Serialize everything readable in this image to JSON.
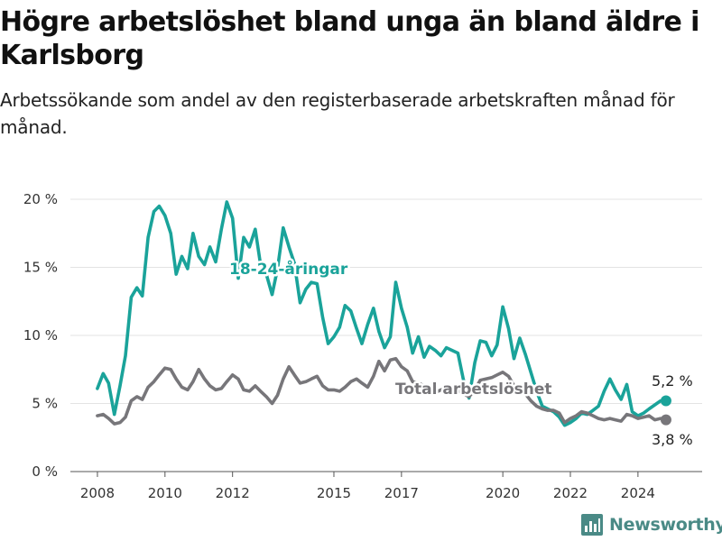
{
  "title": "Högre arbetslöshet bland unga än bland äldre i Karlsborg",
  "subtitle": "Arbetssökande som andel av den registerbaserade arbetskraften månad för månad.",
  "brand": {
    "name": "Newsworthy",
    "icon": "bar-chart-logo-icon",
    "color": "#4a8a86"
  },
  "chart_data": {
    "type": "line",
    "title": "Högre arbetslöshet bland unga än bland äldre i Karlsborg",
    "subtitle": "Arbetssökande som andel av den registerbaserade arbetskraften månad för månad.",
    "xlabel": "",
    "ylabel": "",
    "xlim": [
      2007.2,
      2025.9
    ],
    "ylim": [
      0,
      20
    ],
    "y_unit": "%",
    "grid": true,
    "legend": "direct labels on lines",
    "x_ticks": [
      2008,
      2010,
      2012,
      2015,
      2017,
      2020,
      2022,
      2024
    ],
    "y_ticks": [
      {
        "value": 0,
        "label": "0 %"
      },
      {
        "value": 5,
        "label": "5 %"
      },
      {
        "value": 10,
        "label": "10 %"
      },
      {
        "value": 15,
        "label": "15 %"
      },
      {
        "value": 20,
        "label": "20 %"
      }
    ],
    "series": [
      {
        "name": "18-24-åringar",
        "color": "#1aa39a",
        "end_label": "5,2 %",
        "x": [
          2008.0,
          2008.17,
          2008.33,
          2008.5,
          2008.67,
          2008.83,
          2009.0,
          2009.17,
          2009.33,
          2009.5,
          2009.67,
          2009.83,
          2010.0,
          2010.17,
          2010.33,
          2010.5,
          2010.67,
          2010.83,
          2011.0,
          2011.17,
          2011.33,
          2011.5,
          2011.67,
          2011.83,
          2012.0,
          2012.17,
          2012.33,
          2012.5,
          2012.67,
          2012.83,
          2013.0,
          2013.17,
          2013.33,
          2013.5,
          2013.67,
          2013.83,
          2014.0,
          2014.17,
          2014.33,
          2014.5,
          2014.67,
          2014.83,
          2015.0,
          2015.17,
          2015.33,
          2015.5,
          2015.67,
          2015.83,
          2016.0,
          2016.17,
          2016.33,
          2016.5,
          2016.67,
          2016.83,
          2017.0,
          2017.17,
          2017.33,
          2017.5,
          2017.67,
          2017.83,
          2018.0,
          2018.17,
          2018.33,
          2018.5,
          2018.67,
          2018.83,
          2019.0,
          2019.17,
          2019.33,
          2019.5,
          2019.67,
          2019.83,
          2020.0,
          2020.17,
          2020.33,
          2020.5,
          2020.67,
          2020.83,
          2021.0,
          2021.17,
          2021.33,
          2021.5,
          2021.67,
          2021.83,
          2022.0,
          2022.17,
          2022.33,
          2022.5,
          2022.67,
          2022.83,
          2023.0,
          2023.17,
          2023.33,
          2023.5,
          2023.67,
          2023.83,
          2024.0,
          2024.17,
          2024.33,
          2024.5,
          2024.67,
          2024.83
        ],
        "values": [
          6.1,
          7.2,
          6.5,
          4.2,
          6.3,
          8.5,
          12.8,
          13.5,
          12.9,
          17.2,
          19.1,
          19.5,
          18.8,
          17.5,
          14.5,
          15.8,
          14.9,
          17.5,
          15.8,
          15.2,
          16.5,
          15.4,
          17.8,
          19.8,
          18.6,
          14.2,
          17.2,
          16.5,
          17.8,
          15.2,
          14.5,
          13.0,
          14.9,
          17.9,
          16.5,
          15.3,
          12.4,
          13.4,
          13.9,
          13.8,
          11.3,
          9.4,
          9.9,
          10.6,
          12.2,
          11.8,
          10.5,
          9.4,
          10.8,
          12.0,
          10.3,
          9.1,
          9.9,
          13.9,
          12.0,
          10.6,
          8.7,
          9.9,
          8.4,
          9.2,
          8.9,
          8.5,
          9.1,
          8.9,
          8.7,
          6.8,
          5.4,
          8.0,
          9.6,
          9.5,
          8.5,
          9.3,
          12.1,
          10.5,
          8.3,
          9.8,
          8.6,
          7.3,
          5.9,
          4.8,
          4.6,
          4.4,
          4.0,
          3.4,
          3.6,
          3.9,
          4.3,
          4.2,
          4.5,
          4.8,
          5.9,
          6.8,
          6.0,
          5.3,
          6.4,
          4.4,
          4.1,
          4.3,
          4.6,
          4.9,
          5.2,
          5.2
        ]
      },
      {
        "name": "Total arbetslöshet",
        "color": "#77767a",
        "end_label": "3,8 %",
        "x": [
          2008.0,
          2008.17,
          2008.33,
          2008.5,
          2008.67,
          2008.83,
          2009.0,
          2009.17,
          2009.33,
          2009.5,
          2009.67,
          2009.83,
          2010.0,
          2010.17,
          2010.33,
          2010.5,
          2010.67,
          2010.83,
          2011.0,
          2011.17,
          2011.33,
          2011.5,
          2011.67,
          2011.83,
          2012.0,
          2012.17,
          2012.33,
          2012.5,
          2012.67,
          2012.83,
          2013.0,
          2013.17,
          2013.33,
          2013.5,
          2013.67,
          2013.83,
          2014.0,
          2014.17,
          2014.33,
          2014.5,
          2014.67,
          2014.83,
          2015.0,
          2015.17,
          2015.33,
          2015.5,
          2015.67,
          2015.83,
          2016.0,
          2016.17,
          2016.33,
          2016.5,
          2016.67,
          2016.83,
          2017.0,
          2017.17,
          2017.33,
          2017.5,
          2017.67,
          2017.83,
          2018.0,
          2018.17,
          2018.33,
          2018.5,
          2018.67,
          2018.83,
          2019.0,
          2019.17,
          2019.33,
          2019.5,
          2019.67,
          2019.83,
          2020.0,
          2020.17,
          2020.33,
          2020.5,
          2020.67,
          2020.83,
          2021.0,
          2021.17,
          2021.33,
          2021.5,
          2021.67,
          2021.83,
          2022.0,
          2022.17,
          2022.33,
          2022.5,
          2022.67,
          2022.83,
          2023.0,
          2023.17,
          2023.33,
          2023.5,
          2023.67,
          2023.83,
          2024.0,
          2024.17,
          2024.33,
          2024.5,
          2024.67,
          2024.83
        ],
        "values": [
          4.1,
          4.2,
          3.9,
          3.5,
          3.6,
          4.0,
          5.2,
          5.5,
          5.3,
          6.2,
          6.6,
          7.1,
          7.6,
          7.5,
          6.8,
          6.2,
          6.0,
          6.6,
          7.5,
          6.8,
          6.3,
          6.0,
          6.1,
          6.6,
          7.1,
          6.8,
          6.0,
          5.9,
          6.3,
          5.9,
          5.5,
          5.0,
          5.6,
          6.8,
          7.7,
          7.1,
          6.5,
          6.6,
          6.8,
          7.0,
          6.3,
          6.0,
          6.0,
          5.9,
          6.2,
          6.6,
          6.8,
          6.5,
          6.2,
          7.0,
          8.1,
          7.4,
          8.2,
          8.3,
          7.7,
          7.4,
          6.6,
          6.5,
          6.3,
          6.1,
          5.8,
          6.0,
          6.1,
          6.2,
          6.0,
          5.7,
          5.5,
          6.0,
          6.7,
          6.8,
          6.9,
          7.1,
          7.3,
          7.0,
          6.3,
          6.1,
          5.7,
          5.2,
          4.8,
          4.6,
          4.5,
          4.5,
          4.3,
          3.6,
          3.9,
          4.1,
          4.4,
          4.3,
          4.1,
          3.9,
          3.8,
          3.9,
          3.8,
          3.7,
          4.2,
          4.1,
          3.9,
          4.0,
          4.1,
          3.8,
          3.9,
          3.8
        ]
      }
    ]
  }
}
